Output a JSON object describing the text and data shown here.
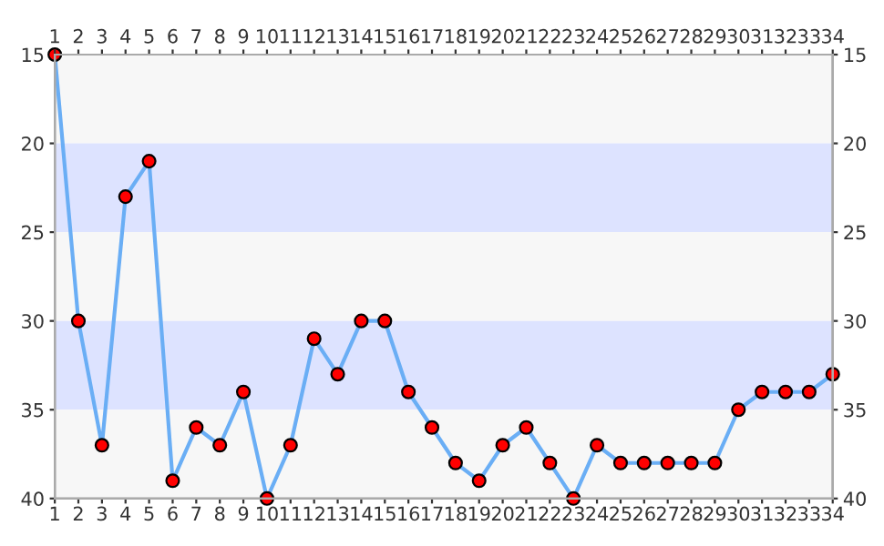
{
  "chart_data": {
    "type": "line",
    "x": [
      1,
      2,
      3,
      4,
      5,
      6,
      7,
      8,
      9,
      10,
      11,
      12,
      13,
      14,
      15,
      16,
      17,
      18,
      19,
      20,
      21,
      22,
      23,
      24,
      25,
      26,
      27,
      28,
      29,
      30,
      31,
      32,
      33,
      34
    ],
    "series": [
      {
        "color": "#6aaef5",
        "colors": [
          "#ff0000",
          "#ff0000",
          "#ff0000",
          "#ff0000",
          "#ff0000",
          "#ff0000",
          "#ff0000",
          "#ff0000",
          "#ff0000",
          "#ff0000",
          "#ff0000",
          "#ff0000",
          "#ff0000",
          "#ff0000",
          "#ff0000",
          "#ff0000",
          "#ff0000",
          "#ff0000",
          "#ff0000",
          "#ff0000",
          "#ff0000",
          "#ff0000",
          "#ff0000",
          "#ff0000",
          "#ff0000",
          "#ff0000",
          "#ff0000",
          "#ff0000",
          "#ff0000",
          "#ff0000",
          "#ff0000",
          "#ff0000",
          "#ff0000",
          "#ff0000"
        ],
        "values": [
          15,
          30,
          37,
          23,
          21,
          39,
          36,
          37,
          34,
          40,
          37,
          31,
          33,
          30,
          30,
          34,
          36,
          38,
          39,
          37,
          36,
          38,
          40,
          37,
          38,
          38,
          38,
          38,
          38,
          35,
          34,
          34,
          34,
          33
        ]
      }
    ],
    "marker": "circle",
    "line_style": "solid",
    "grid": false,
    "legend": false,
    "xlim": [
      1,
      34
    ],
    "xticks": [
      1,
      2,
      3,
      4,
      5,
      6,
      7,
      8,
      9,
      10,
      11,
      12,
      13,
      14,
      15,
      16,
      17,
      18,
      19,
      20,
      21,
      22,
      23,
      24,
      25,
      26,
      27,
      28,
      29,
      30,
      31,
      32,
      33,
      34
    ],
    "x2lim": [
      1,
      34
    ],
    "x2ticks": [
      1,
      2,
      3,
      4,
      5,
      6,
      7,
      8,
      9,
      10,
      11,
      12,
      13,
      14,
      15,
      16,
      17,
      18,
      19,
      20,
      21,
      22,
      23,
      24,
      25,
      26,
      27,
      28,
      29,
      30,
      31,
      32,
      33,
      34
    ],
    "ylim": [
      40,
      15
    ],
    "yticks": [
      15,
      20,
      25,
      30,
      35,
      40
    ],
    "y2lim": [
      40,
      15
    ],
    "y2ticks": [
      15,
      20,
      25,
      30,
      35,
      40
    ],
    "bands": [
      {
        "axis": "y",
        "from": 15,
        "to": 20,
        "color": "#f7f7f7"
      },
      {
        "axis": "y",
        "from": 20,
        "to": 25,
        "color": "#dde3ff"
      },
      {
        "axis": "y",
        "from": 25,
        "to": 30,
        "color": "#f7f7f7"
      },
      {
        "axis": "y",
        "from": 30,
        "to": 35,
        "color": "#dde3ff"
      },
      {
        "axis": "y",
        "from": 35,
        "to": 40,
        "color": "#f7f7f7"
      }
    ]
  }
}
